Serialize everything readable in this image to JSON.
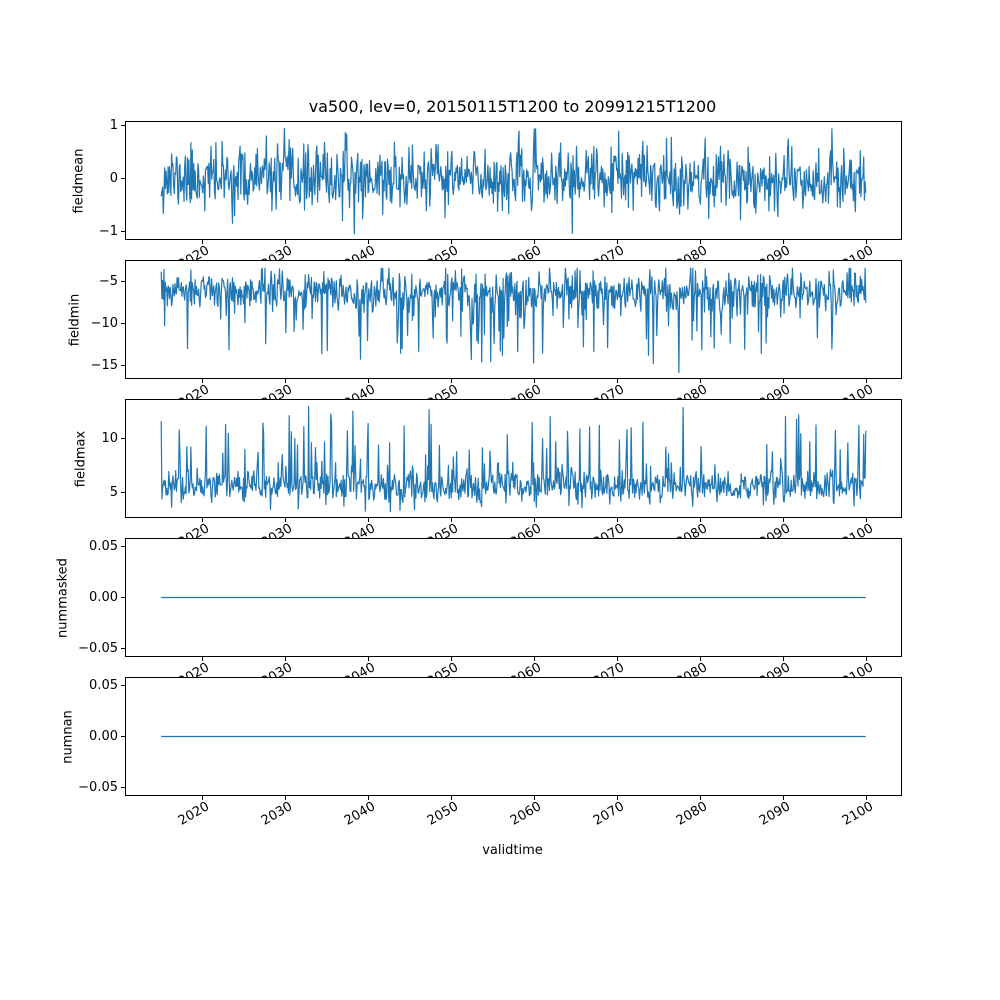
{
  "figure": {
    "title": "va500, lev=0, 20150115T1200 to 20991215T1200",
    "variable": "va500",
    "level": "lev=0",
    "time_range_start": "20150115T1200",
    "time_range_end": "20991215T1200"
  },
  "colors": {
    "line": "#1f77b4",
    "axis": "#000000",
    "background": "#ffffff",
    "text": "#000000"
  },
  "x_axis": {
    "label": "validtime",
    "tick_values": [
      2020,
      2030,
      2040,
      2050,
      2060,
      2070,
      2080,
      2090,
      2100
    ],
    "tick_labels": [
      "2020",
      "2030",
      "2040",
      "2050",
      "2060",
      "2070",
      "2080",
      "2090",
      "2100"
    ],
    "tick_rotation_deg": 30,
    "xlim": [
      2010.8,
      2104.2
    ],
    "data_start": 2015.04,
    "data_end": 2099.96,
    "points_per_year": 12
  },
  "chart_data": [
    {
      "type": "line",
      "ylabel": "fieldmean",
      "ytick_labels": [
        "1",
        "0",
        "−1"
      ],
      "ytick_values": [
        1,
        0,
        -1
      ],
      "ylim": [
        -1.15,
        1.07
      ],
      "grid": false,
      "legend": "none",
      "series": {
        "kind": "noisy",
        "n_points": 1019,
        "cadence": "monthly",
        "seed": 11,
        "base": 0.0,
        "std": 0.3,
        "spike": null,
        "clip": [
          -1.04,
          0.94
        ],
        "observed": {
          "typical_band": [
            -0.6,
            0.6
          ],
          "min": -1.05,
          "max": 0.95
        },
        "key_points": [
          {
            "x": 2029.9,
            "y": 0.95
          },
          {
            "x": 2038.3,
            "y": -1.05
          },
          {
            "x": 2076.5,
            "y": 0.78
          },
          {
            "x": 2090.6,
            "y": 0.75
          }
        ]
      }
    },
    {
      "type": "line",
      "ylabel": "fieldmin",
      "ytick_labels": [
        "−5",
        "−10",
        "−15"
      ],
      "ytick_values": [
        -5,
        -10,
        -15
      ],
      "ylim": [
        -16.45,
        -2.55
      ],
      "grid": false,
      "legend": "none",
      "series": {
        "kind": "noisy",
        "n_points": 1019,
        "cadence": "monthly",
        "seed": 23,
        "base": -6.2,
        "std": 1.2,
        "spike": {
          "prob": 0.09,
          "dir": -1,
          "min": 1.0,
          "max": 7.5
        },
        "clip": [
          -15.7,
          -3.4
        ],
        "observed": {
          "typical_band": [
            -9.5,
            -4.0
          ],
          "min": -15.8,
          "max": -3.3
        },
        "key_points": [
          {
            "x": 2077.4,
            "y": -15.8
          },
          {
            "x": 2056.2,
            "y": -13.8
          },
          {
            "x": 2035.1,
            "y": -13.2
          },
          {
            "x": 2061.0,
            "y": -13.5
          }
        ]
      }
    },
    {
      "type": "line",
      "ylabel": "fieldmax",
      "ytick_labels": [
        "10",
        "5"
      ],
      "ytick_values": [
        10,
        5
      ],
      "ylim": [
        2.75,
        13.5
      ],
      "grid": false,
      "legend": "none",
      "series": {
        "kind": "noisy",
        "n_points": 1019,
        "cadence": "monthly",
        "seed": 37,
        "base": 5.6,
        "std": 0.78,
        "spike": {
          "prob": 0.09,
          "dir": 1,
          "min": 1.0,
          "max": 6.5
        },
        "clip": [
          3.25,
          12.85
        ],
        "observed": {
          "typical_band": [
            4.2,
            7.2
          ],
          "min": 3.2,
          "max": 12.9
        },
        "key_points": [
          {
            "x": 2032.8,
            "y": 12.9
          },
          {
            "x": 2047.3,
            "y": 12.6
          },
          {
            "x": 2035.5,
            "y": 12.2
          },
          {
            "x": 2077.9,
            "y": 12.8
          },
          {
            "x": 2090.3,
            "y": 12.0
          }
        ]
      }
    },
    {
      "type": "line",
      "ylabel": "nummasked",
      "ytick_labels": [
        "0.05",
        "0.00",
        "−0.05"
      ],
      "ytick_values": [
        0.05,
        0.0,
        -0.05
      ],
      "ylim": [
        -0.057,
        0.057
      ],
      "grid": false,
      "legend": "none",
      "series": {
        "kind": "constant",
        "value": 0.0,
        "observed": {
          "min": 0.0,
          "max": 0.0
        }
      }
    },
    {
      "type": "line",
      "ylabel": "numnan",
      "ytick_labels": [
        "0.05",
        "0.00",
        "−0.05"
      ],
      "ytick_values": [
        0.05,
        0.0,
        -0.05
      ],
      "ylim": [
        -0.057,
        0.057
      ],
      "grid": false,
      "legend": "none",
      "series": {
        "kind": "constant",
        "value": 0.0,
        "observed": {
          "min": 0.0,
          "max": 0.0
        }
      }
    }
  ]
}
